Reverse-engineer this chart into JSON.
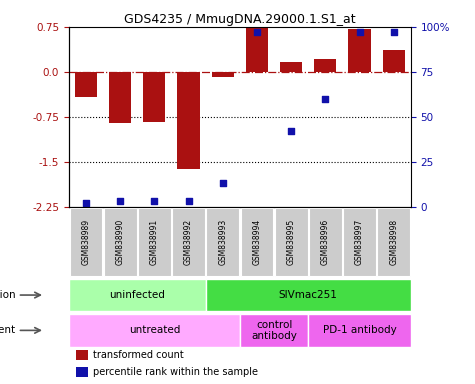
{
  "title": "GDS4235 / MmugDNA.29000.1.S1_at",
  "samples": [
    "GSM838989",
    "GSM838990",
    "GSM838991",
    "GSM838992",
    "GSM838993",
    "GSM838994",
    "GSM838995",
    "GSM838996",
    "GSM838997",
    "GSM838998"
  ],
  "bar_values": [
    -0.42,
    -0.85,
    -0.83,
    -1.62,
    -0.08,
    0.75,
    0.17,
    0.22,
    0.72,
    0.37
  ],
  "percentile_values": [
    2,
    3,
    3,
    3,
    13,
    97,
    42,
    60,
    97,
    97
  ],
  "bar_color": "#aa1111",
  "dot_color": "#1111aa",
  "ylim": [
    -2.25,
    0.75
  ],
  "yticks_left": [
    -2.25,
    -1.5,
    -0.75,
    0.0,
    0.75
  ],
  "yticks_right": [
    0,
    25,
    50,
    75,
    100
  ],
  "hline_y": 0.0,
  "dotted_lines": [
    -0.75,
    -1.5
  ],
  "infection_groups": [
    {
      "label": "uninfected",
      "start": 0,
      "end": 3,
      "color": "#aaffaa"
    },
    {
      "label": "SIVmac251",
      "start": 4,
      "end": 9,
      "color": "#44dd44"
    }
  ],
  "agent_groups": [
    {
      "label": "untreated",
      "start": 0,
      "end": 4,
      "color": "#ffaaff"
    },
    {
      "label": "control\nantibody",
      "start": 5,
      "end": 6,
      "color": "#ee66ee"
    },
    {
      "label": "PD-1 antibody",
      "start": 7,
      "end": 9,
      "color": "#ee66ee"
    }
  ],
  "legend_items": [
    {
      "label": "transformed count",
      "color": "#aa1111"
    },
    {
      "label": "percentile rank within the sample",
      "color": "#1111aa"
    }
  ],
  "sample_box_color": "#cccccc",
  "background_color": "#ffffff"
}
